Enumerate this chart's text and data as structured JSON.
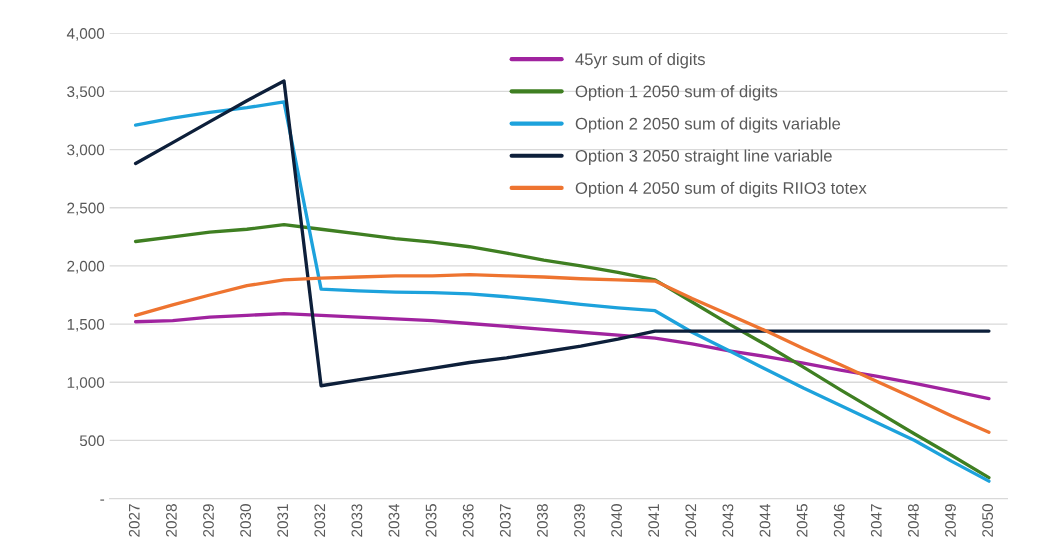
{
  "chart_data": {
    "type": "line",
    "categories": [
      "2027",
      "2028",
      "2029",
      "2030",
      "2031",
      "2032",
      "2033",
      "2034",
      "2035",
      "2036",
      "2037",
      "2038",
      "2039",
      "2040",
      "2041",
      "2042",
      "2043",
      "2044",
      "2045",
      "2046",
      "2047",
      "2048",
      "2049",
      "2050"
    ],
    "series": [
      {
        "name": "45yr sum of digits",
        "color": "#a0239f",
        "values": [
          1520,
          1530,
          1560,
          1575,
          1590,
          1575,
          1560,
          1545,
          1530,
          1505,
          1480,
          1455,
          1430,
          1405,
          1380,
          1330,
          1270,
          1220,
          1165,
          1105,
          1050,
          990,
          925,
          860
        ]
      },
      {
        "name": "Option 1 2050 sum of digits",
        "color": "#3f7f22",
        "values": [
          2210,
          2250,
          2290,
          2315,
          2355,
          2315,
          2275,
          2235,
          2205,
          2165,
          2110,
          2050,
          2000,
          1945,
          1880,
          1690,
          1500,
          1320,
          1130,
          935,
          745,
          555,
          370,
          180
        ]
      },
      {
        "name": "Option 2 2050 sum of digits variable",
        "color": "#1da2dc",
        "values": [
          3210,
          3270,
          3320,
          3360,
          3410,
          1800,
          1785,
          1775,
          1770,
          1760,
          1735,
          1705,
          1670,
          1640,
          1615,
          1430,
          1270,
          1110,
          950,
          800,
          650,
          500,
          320,
          150
        ]
      },
      {
        "name": "Option 3 2050 straight line variable",
        "color": "#0d1f3a",
        "values": [
          2880,
          3060,
          3240,
          3420,
          3590,
          970,
          1020,
          1070,
          1120,
          1170,
          1210,
          1260,
          1310,
          1370,
          1440,
          1440,
          1440,
          1440,
          1440,
          1440,
          1440,
          1440,
          1440,
          1440
        ]
      },
      {
        "name": "Option 4 2050 sum of digits RIIO3 totex",
        "color": "#ee7430",
        "values": [
          1575,
          1665,
          1750,
          1830,
          1880,
          1895,
          1905,
          1915,
          1915,
          1925,
          1915,
          1905,
          1890,
          1880,
          1870,
          1720,
          1580,
          1440,
          1290,
          1150,
          1005,
          860,
          710,
          570
        ]
      }
    ],
    "ylim": [
      0,
      4000
    ],
    "yticks": [
      {
        "value": 0,
        "label": "-"
      },
      {
        "value": 500,
        "label": "500"
      },
      {
        "value": 1000,
        "label": "1,000"
      },
      {
        "value": 1500,
        "label": "1,500"
      },
      {
        "value": 2000,
        "label": "2,000"
      },
      {
        "value": 2500,
        "label": "2,500"
      },
      {
        "value": 3000,
        "label": "3,000"
      },
      {
        "value": 3500,
        "label": "3,500"
      },
      {
        "value": 4000,
        "label": "4,000"
      }
    ],
    "grid": "y",
    "legend": "top right",
    "marker": "none",
    "line_style": "solid"
  }
}
